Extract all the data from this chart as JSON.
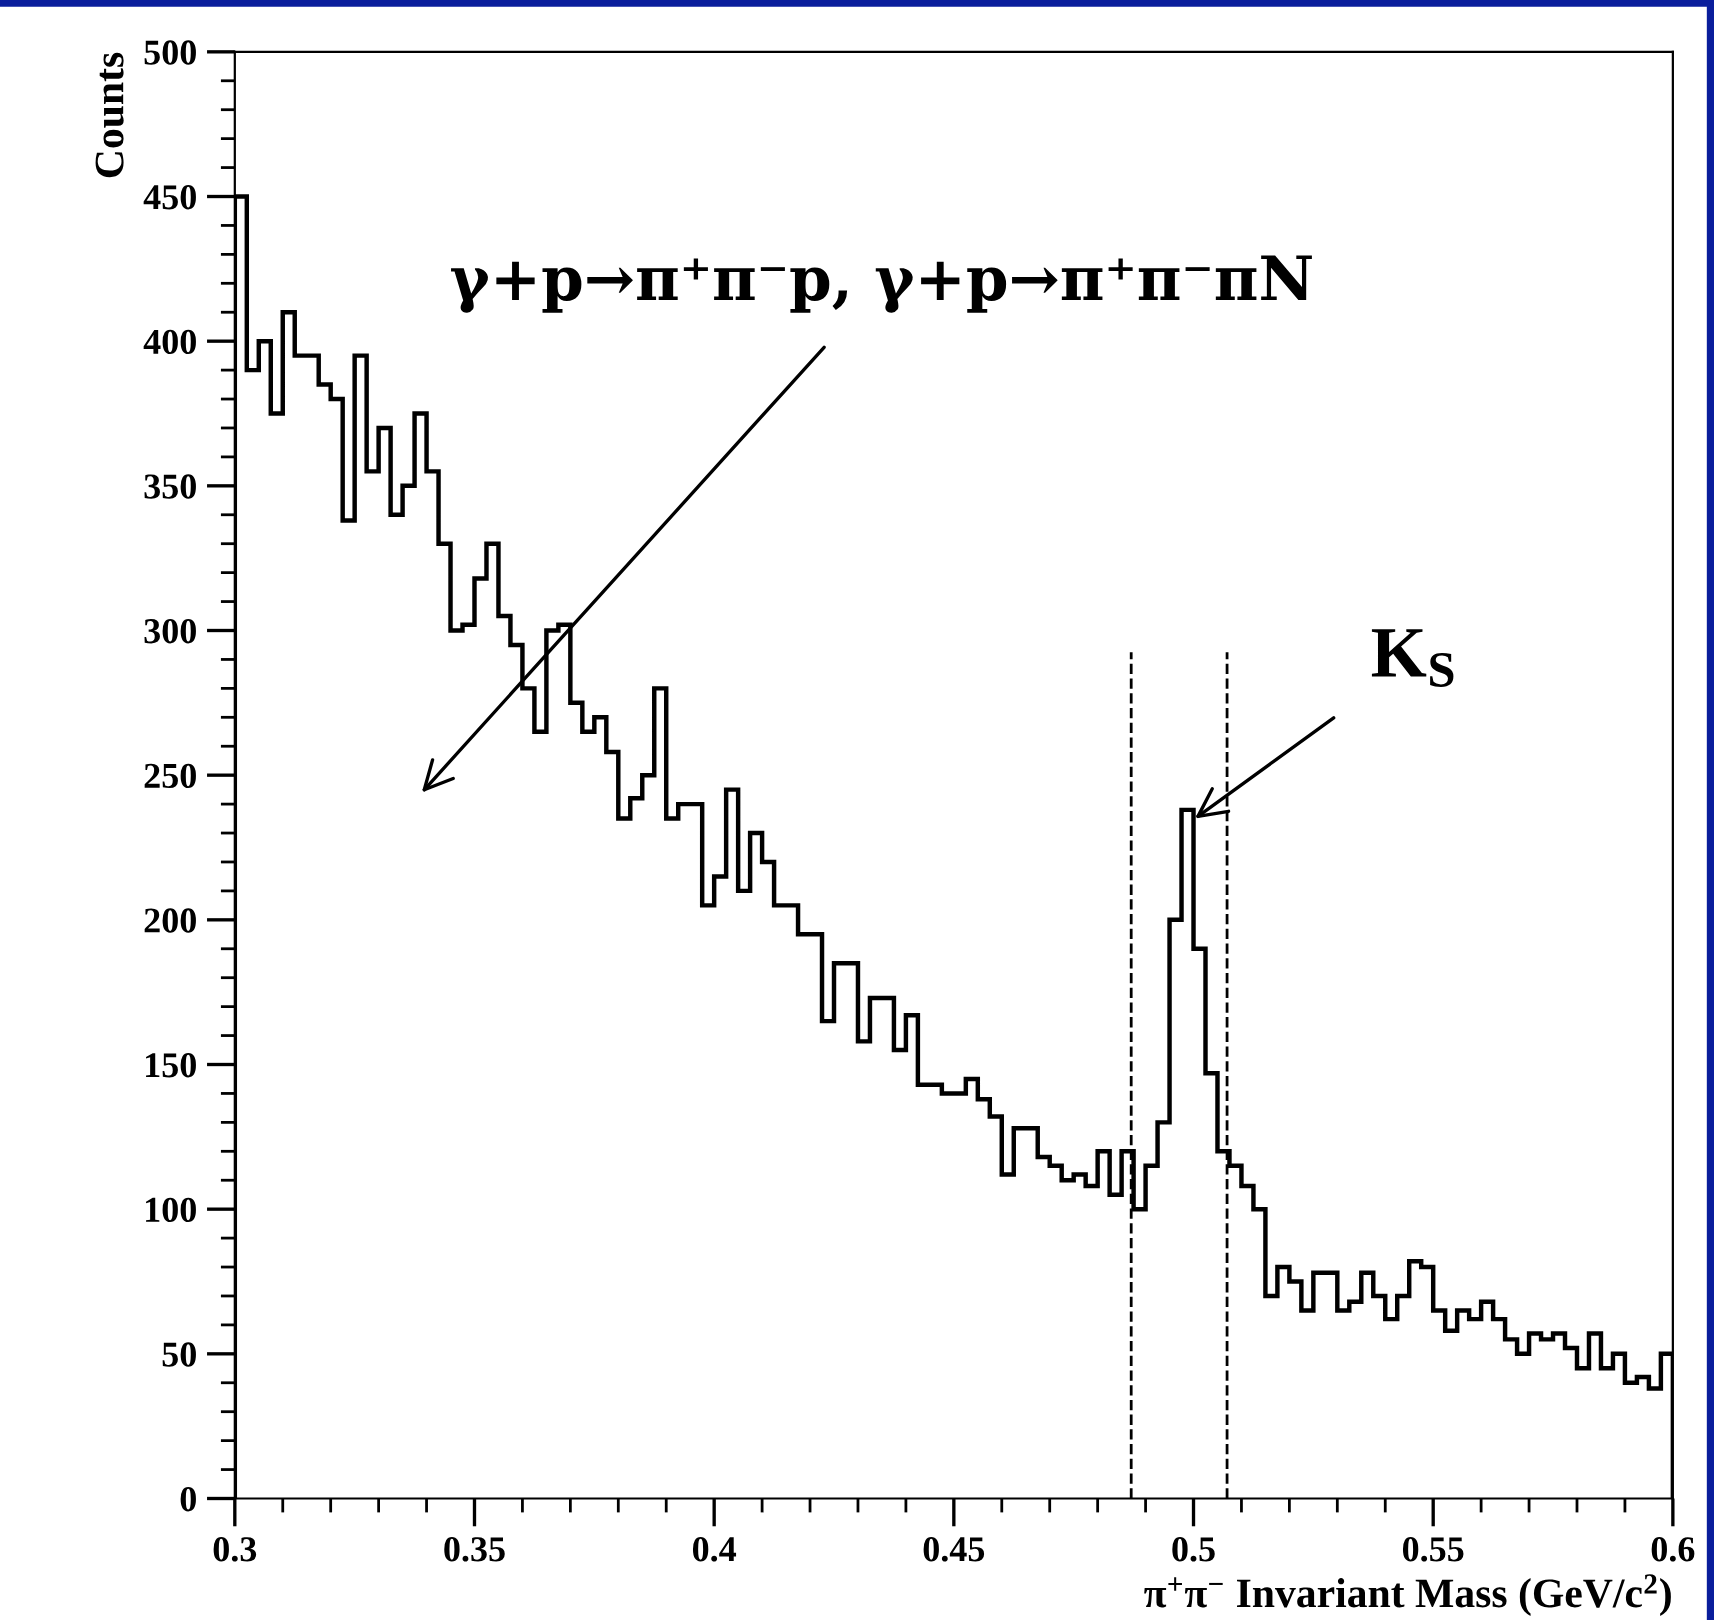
{
  "chart_data": {
    "type": "histogram",
    "xlabel": "π$^{+}$π$^{−}$ Invariant Mass (GeV/c$^{2}$)",
    "ylabel": "Counts",
    "bins": [
      0.3,
      0.3025,
      0.305,
      0.3075,
      0.31,
      0.3125,
      0.315,
      0.3175,
      0.32,
      0.3225,
      0.325,
      0.3275,
      0.33,
      0.3325,
      0.335,
      0.3375,
      0.34,
      0.3425,
      0.345,
      0.3475,
      0.35,
      0.3525,
      0.355,
      0.3575,
      0.36,
      0.3625,
      0.365,
      0.3675,
      0.37,
      0.3725,
      0.375,
      0.3775,
      0.38,
      0.3825,
      0.385,
      0.3875,
      0.39,
      0.3925,
      0.395,
      0.3975,
      0.4,
      0.4025,
      0.405,
      0.4075,
      0.41,
      0.4125,
      0.415,
      0.4175,
      0.42,
      0.4225,
      0.425,
      0.4275,
      0.43,
      0.4325,
      0.435,
      0.4375,
      0.44,
      0.4425,
      0.445,
      0.4475,
      0.45,
      0.4525,
      0.455,
      0.4575,
      0.46,
      0.4625,
      0.465,
      0.4675,
      0.47,
      0.4725,
      0.475,
      0.4775,
      0.48,
      0.4825,
      0.485,
      0.4875,
      0.49,
      0.4925,
      0.495,
      0.4975,
      0.5,
      0.5025,
      0.505,
      0.5075,
      0.51,
      0.5125,
      0.515,
      0.5175,
      0.52,
      0.5225,
      0.525,
      0.5275,
      0.53,
      0.5325,
      0.535,
      0.5375,
      0.54,
      0.5425,
      0.545,
      0.5475,
      0.55,
      0.5525,
      0.555,
      0.5575,
      0.56,
      0.5625,
      0.565,
      0.5675,
      0.57,
      0.5725,
      0.575,
      0.5775,
      0.58,
      0.5825,
      0.585,
      0.5875,
      0.59,
      0.5925,
      0.595,
      0.5975,
      0.6
    ],
    "values": [
      450,
      390,
      400,
      375,
      410,
      395,
      395,
      385,
      380,
      338,
      395,
      355,
      370,
      340,
      350,
      375,
      355,
      330,
      300,
      302,
      318,
      330,
      305,
      295,
      280,
      265,
      300,
      302,
      275,
      265,
      270,
      258,
      235,
      242,
      250,
      280,
      235,
      240,
      240,
      205,
      215,
      245,
      210,
      230,
      220,
      205,
      205,
      195,
      195,
      165,
      185,
      185,
      158,
      173,
      173,
      155,
      167,
      143,
      143,
      140,
      140,
      145,
      138,
      132,
      112,
      128,
      128,
      118,
      115,
      110,
      112,
      108,
      120,
      105,
      120,
      100,
      115,
      130,
      200,
      238,
      190,
      147,
      120,
      115,
      108,
      100,
      70,
      80,
      75,
      65,
      78,
      78,
      65,
      68,
      78,
      70,
      62,
      70,
      82,
      80,
      65,
      58,
      65,
      62,
      68,
      62,
      55,
      50,
      57,
      55,
      57,
      52,
      45,
      57,
      45,
      50,
      40,
      42,
      38,
      50
    ],
    "color": "#000000",
    "xlim": [
      0.3,
      0.6
    ],
    "ylim": [
      0,
      500
    ],
    "xticks": [
      0.3,
      0.35,
      0.4,
      0.45,
      0.5,
      0.55,
      0.6
    ],
    "yticks": [
      0,
      50,
      100,
      150,
      200,
      250,
      300,
      350,
      400,
      450,
      500
    ],
    "ref_lines": [
      {
        "axis": "x",
        "value": 0.487,
        "line_style": "dashed",
        "color": "#000000"
      },
      {
        "axis": "x",
        "value": 0.507,
        "line_style": "dashed",
        "color": "#000000"
      }
    ],
    "annotations": [
      {
        "text": "γ+p→π⁺π⁻p, γ+p→π⁺π⁻πN",
        "x": 0.339,
        "y": 244
      },
      {
        "text": "K$_{S}$",
        "x": 0.5003,
        "y": 235
      }
    ],
    "grid": false
  }
}
